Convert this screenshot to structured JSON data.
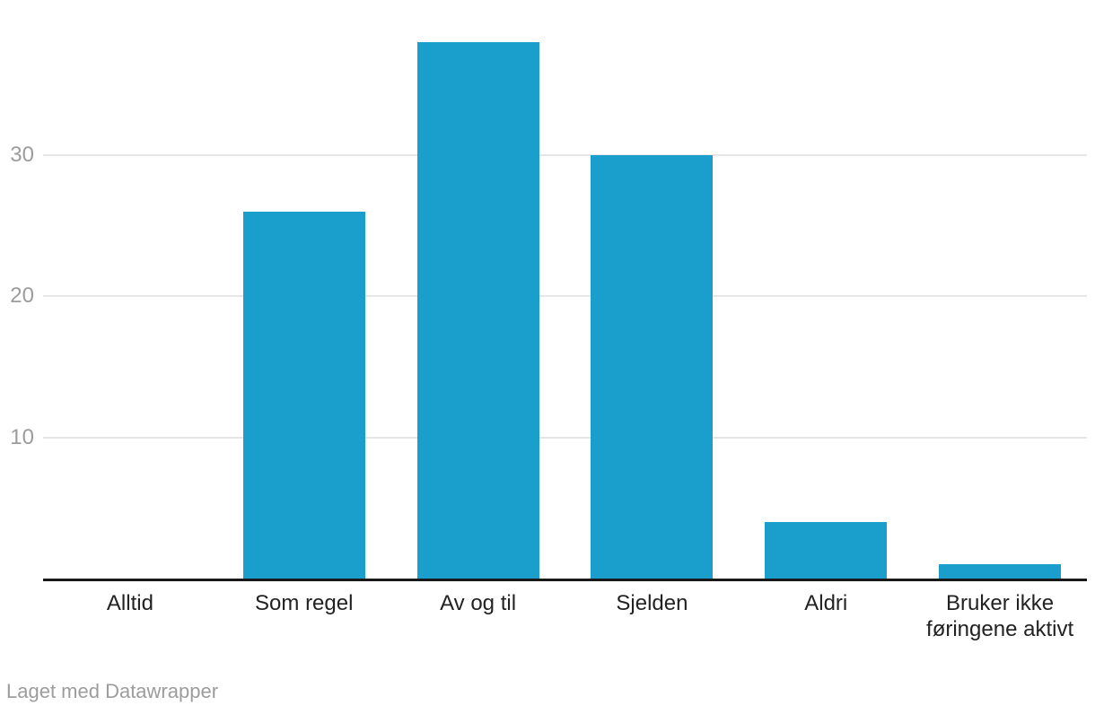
{
  "chart_data": {
    "type": "bar",
    "categories": [
      "Alltid",
      "Som regel",
      "Av og til",
      "Sjelden",
      "Aldri",
      "Bruker ikke\nføringene aktivt"
    ],
    "values": [
      0,
      26,
      38,
      30,
      4,
      1
    ],
    "title": "",
    "xlabel": "",
    "ylabel": "",
    "yticks": [
      10,
      20,
      30
    ],
    "ylim": [
      0,
      41
    ],
    "grid": "horizontal-only",
    "legend": "none",
    "bar_color": "#1a9fcc"
  },
  "colors": {
    "bar": "#1a9fcc",
    "gridline": "#e6e6e6",
    "axis_line": "#191919",
    "y_tick_text": "#9c9c9c",
    "x_label_text": "#222222",
    "footer_text": "#9c9c9c",
    "background": "#ffffff"
  },
  "footer": {
    "credit": "Laget med Datawrapper"
  }
}
